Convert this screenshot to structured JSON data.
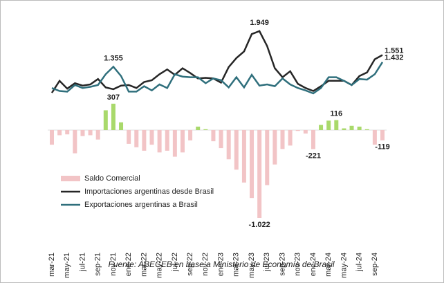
{
  "chart_data": {
    "type": "combo",
    "categories": [
      "mar-21",
      null,
      "may-21",
      null,
      "jul-21",
      null,
      "sep-21",
      null,
      "nov-21",
      null,
      "ene-22",
      null,
      "mar-22",
      null,
      "may-22",
      null,
      "jul-22",
      null,
      "sep-22",
      null,
      "nov-22",
      null,
      "ene-23",
      null,
      "mar-23",
      null,
      "may-23",
      null,
      "jul-23",
      null,
      "sep-23",
      null,
      "nov-23",
      null,
      "ene-24",
      null,
      "mar-24",
      null,
      "may-24",
      null,
      "jul-24",
      null,
      "sep-24",
      null
    ],
    "series": [
      {
        "name": "Saldo Comercial",
        "type": "bar",
        "color": "#f2c4c6",
        "positive_color": "#a9d96b",
        "values": [
          -170,
          -60,
          -50,
          -270,
          -70,
          -60,
          -110,
          230,
          307,
          90,
          -160,
          -200,
          -240,
          -170,
          -260,
          -240,
          -310,
          -260,
          -120,
          40,
          10,
          -130,
          -210,
          -340,
          -460,
          -610,
          -790,
          -1022,
          -640,
          -400,
          -220,
          -180,
          -10,
          -40,
          -221,
          60,
          110,
          116,
          20,
          50,
          40,
          10,
          -170,
          -119
        ],
        "value_labels": [
          null,
          null,
          null,
          null,
          null,
          null,
          null,
          null,
          "307",
          null,
          null,
          null,
          null,
          null,
          null,
          null,
          null,
          null,
          null,
          null,
          null,
          null,
          null,
          null,
          null,
          null,
          null,
          "-1.022",
          null,
          null,
          null,
          null,
          null,
          null,
          "-221",
          null,
          null,
          "116",
          null,
          null,
          null,
          null,
          null,
          "-119"
        ]
      },
      {
        "name": "Importaciones argentinas desde Brasil",
        "type": "line",
        "color": "#262626",
        "values": [
          920,
          1120,
          990,
          1080,
          1040,
          1060,
          1150,
          1010,
          980,
          1040,
          1050,
          1000,
          1100,
          1130,
          1230,
          1310,
          1220,
          1330,
          1250,
          1160,
          1170,
          1160,
          1090,
          1350,
          1500,
          1610,
          1900,
          1949,
          1700,
          1330,
          1180,
          1280,
          1070,
          1000,
          950,
          1030,
          1120,
          1120,
          1120,
          1050,
          1200,
          1260,
          1480,
          1551
        ],
        "value_labels": [
          null,
          null,
          null,
          null,
          null,
          null,
          null,
          null,
          null,
          null,
          null,
          null,
          null,
          null,
          null,
          null,
          null,
          null,
          null,
          null,
          null,
          null,
          null,
          null,
          null,
          null,
          null,
          "1.949",
          null,
          null,
          null,
          null,
          null,
          null,
          null,
          null,
          null,
          null,
          null,
          null,
          null,
          null,
          null,
          "1.551"
        ]
      },
      {
        "name": "Exportaciones argentinas a Brasil",
        "type": "line",
        "color": "#2f6f7c",
        "values": [
          1000,
          950,
          940,
          1050,
          1000,
          1020,
          1050,
          1230,
          1355,
          1200,
          940,
          940,
          1030,
          960,
          1060,
          1000,
          1230,
          1190,
          1180,
          1180,
          1080,
          1160,
          1130,
          1010,
          1180,
          1010,
          1220,
          1040,
          1060,
          1030,
          1160,
          1060,
          1000,
          960,
          910,
          1000,
          1180,
          1180,
          1120,
          1050,
          1150,
          1140,
          1230,
          1432
        ],
        "value_labels": [
          null,
          null,
          null,
          null,
          null,
          null,
          null,
          null,
          "1.355",
          null,
          null,
          null,
          null,
          null,
          null,
          null,
          null,
          null,
          null,
          null,
          null,
          null,
          null,
          null,
          null,
          null,
          null,
          null,
          null,
          null,
          null,
          null,
          null,
          null,
          null,
          null,
          null,
          null,
          null,
          null,
          null,
          null,
          null,
          "1.432"
        ]
      }
    ],
    "source": "Fuente: ABECEB en base a Ministerio de Economía de Brasil"
  }
}
